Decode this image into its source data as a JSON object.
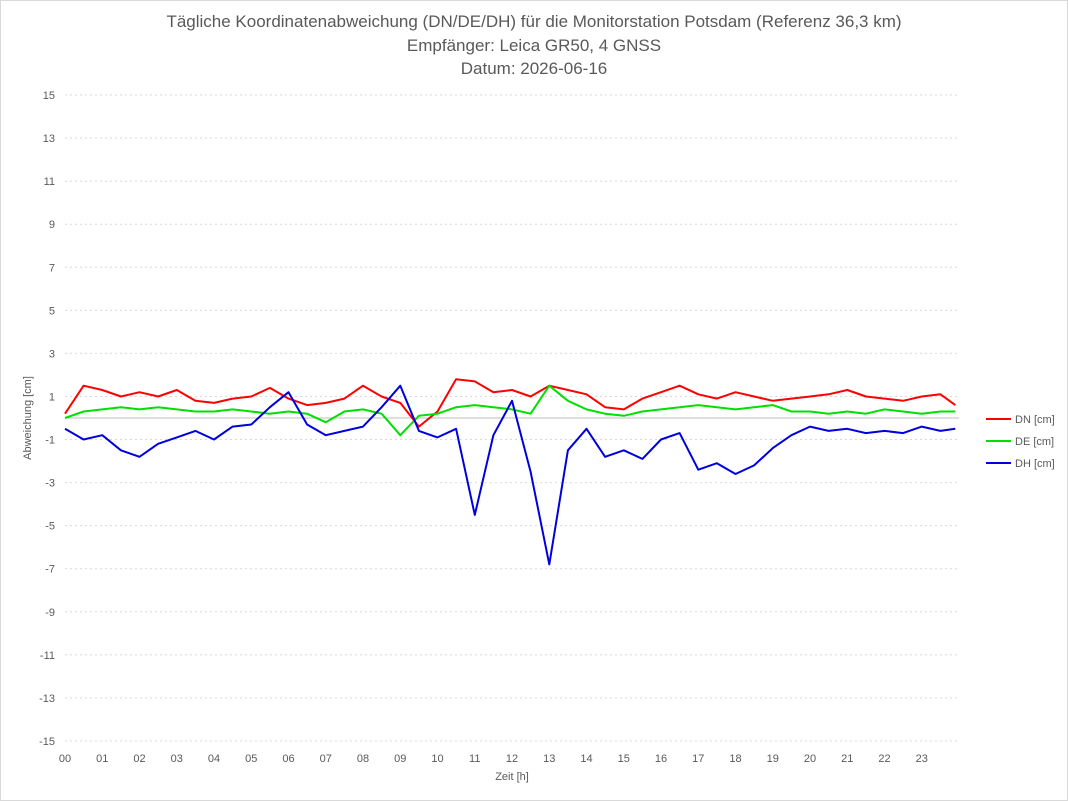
{
  "chart_data": {
    "type": "line",
    "title": "Tägliche Koordinatenabweichung (DN/DE/DH) für die Monitorstation Potsdam (Referenz 36,3 km)",
    "subtitle": "Empfänger: Leica GR50, 4 GNSS",
    "date_line": "Datum: 2026-06-16",
    "xlabel": "Zeit [h]",
    "ylabel": "Abweichung [cm]",
    "xlim": [
      0,
      24
    ],
    "ylim": [
      -15,
      15
    ],
    "xticks": [
      "00",
      "01",
      "02",
      "03",
      "04",
      "05",
      "06",
      "07",
      "08",
      "09",
      "10",
      "11",
      "12",
      "13",
      "14",
      "15",
      "16",
      "17",
      "18",
      "19",
      "20",
      "21",
      "22",
      "23"
    ],
    "yticks": [
      "15",
      "13",
      "11",
      "9",
      "7",
      "5",
      "3",
      "1",
      "-1",
      "-3",
      "-5",
      "-7",
      "-9",
      "-11",
      "-13",
      "-15"
    ],
    "grid": true,
    "legend_position": "right",
    "x": [
      0.0,
      0.5,
      1.0,
      1.5,
      2.0,
      2.5,
      3.0,
      3.5,
      4.0,
      4.5,
      5.0,
      5.5,
      6.0,
      6.5,
      7.0,
      7.5,
      8.0,
      8.5,
      9.0,
      9.5,
      10.0,
      10.5,
      11.0,
      11.5,
      12.0,
      12.5,
      13.0,
      13.5,
      14.0,
      14.5,
      15.0,
      15.5,
      16.0,
      16.5,
      17.0,
      17.5,
      18.0,
      18.5,
      19.0,
      19.5,
      20.0,
      20.5,
      21.0,
      21.5,
      22.0,
      22.5,
      23.0,
      23.5,
      23.9
    ],
    "series": [
      {
        "name": "DN [cm]",
        "color": "#ff0000",
        "values": [
          0.2,
          1.5,
          1.3,
          1.0,
          1.2,
          1.0,
          1.3,
          0.8,
          0.7,
          0.9,
          1.0,
          1.4,
          0.9,
          0.6,
          0.7,
          0.9,
          1.5,
          1.0,
          0.7,
          -0.4,
          0.3,
          1.8,
          1.7,
          1.2,
          1.3,
          1.0,
          1.5,
          1.3,
          1.1,
          0.5,
          0.4,
          0.9,
          1.2,
          1.5,
          1.1,
          0.9,
          1.2,
          1.0,
          0.8,
          0.9,
          1.0,
          1.1,
          1.3,
          1.0,
          0.9,
          0.8,
          1.0,
          1.1,
          0.6
        ]
      },
      {
        "name": "DE [cm]",
        "color": "#00e000",
        "values": [
          0.0,
          0.3,
          0.4,
          0.5,
          0.4,
          0.5,
          0.4,
          0.3,
          0.3,
          0.4,
          0.3,
          0.2,
          0.3,
          0.2,
          -0.2,
          0.3,
          0.4,
          0.2,
          -0.8,
          0.1,
          0.2,
          0.5,
          0.6,
          0.5,
          0.4,
          0.2,
          1.5,
          0.8,
          0.4,
          0.2,
          0.1,
          0.3,
          0.4,
          0.5,
          0.6,
          0.5,
          0.4,
          0.5,
          0.6,
          0.3,
          0.3,
          0.2,
          0.3,
          0.2,
          0.4,
          0.3,
          0.2,
          0.3,
          0.3
        ]
      },
      {
        "name": "DH [cm]",
        "color": "#0000dd",
        "values": [
          -0.5,
          -1.0,
          -0.8,
          -1.5,
          -1.8,
          -1.2,
          -0.9,
          -0.6,
          -1.0,
          -0.4,
          -0.3,
          0.5,
          1.2,
          -0.3,
          -0.8,
          -0.6,
          -0.4,
          0.5,
          1.5,
          -0.6,
          -0.9,
          -0.5,
          -4.5,
          -0.8,
          0.8,
          -2.5,
          -6.8,
          -1.5,
          -0.5,
          -1.8,
          -1.5,
          -1.9,
          -1.0,
          -0.7,
          -2.4,
          -2.1,
          -2.6,
          -2.2,
          -1.4,
          -0.8,
          -0.4,
          -0.6,
          -0.5,
          -0.7,
          -0.6,
          -0.7,
          -0.4,
          -0.6,
          -0.5
        ]
      }
    ]
  }
}
